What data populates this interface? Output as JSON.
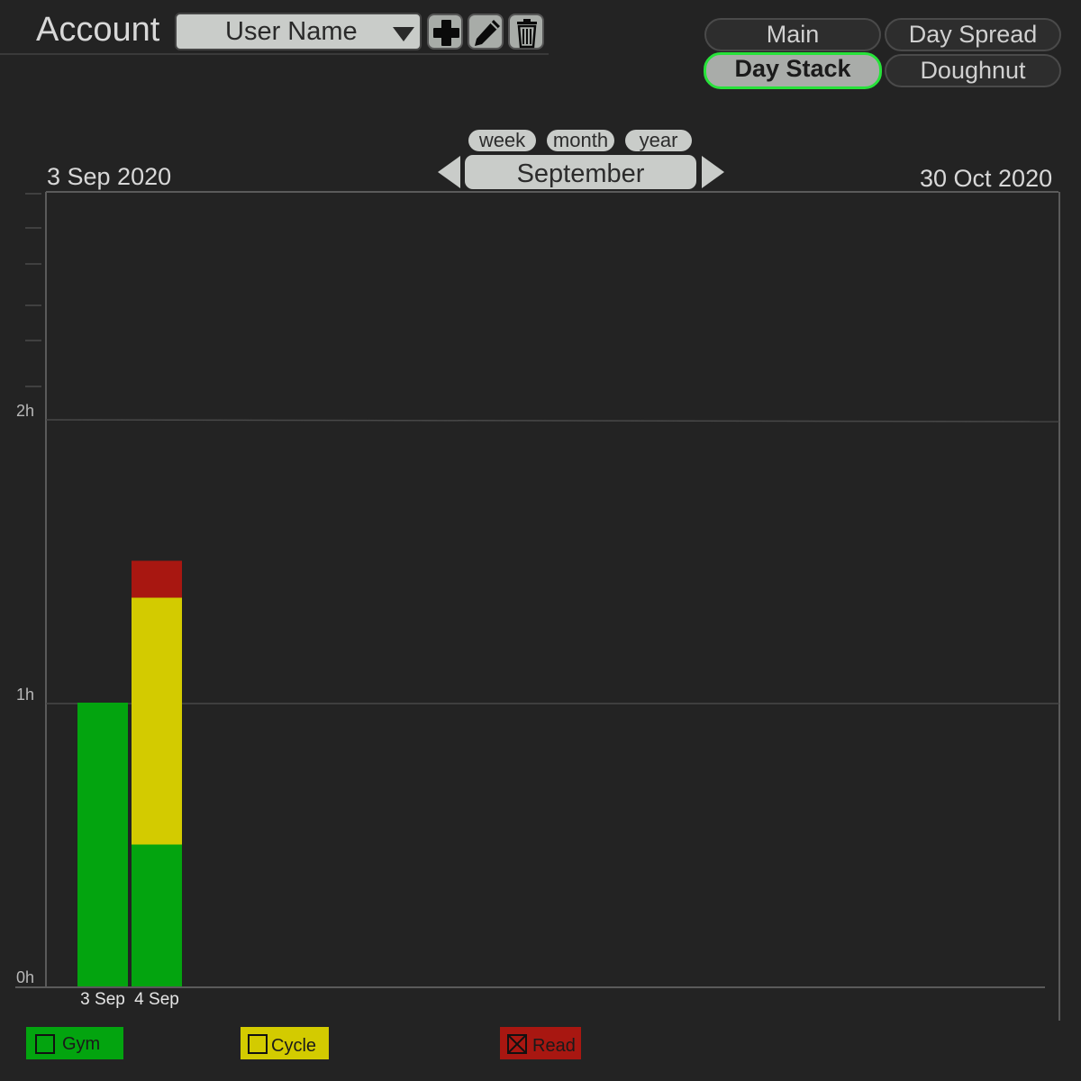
{
  "header": {
    "account_label": "Account",
    "user_select_value": "User Name"
  },
  "view_tabs": [
    {
      "label": "Main",
      "active": false
    },
    {
      "label": "Day Spread",
      "active": false
    },
    {
      "label": "Day Stack",
      "active": true
    },
    {
      "label": "Doughnut",
      "active": false
    }
  ],
  "period": {
    "options": [
      "week",
      "month",
      "year"
    ],
    "current": "September",
    "range_start": "3 Sep 2020",
    "range_end": "30 Oct 2020"
  },
  "colors": {
    "gym": "#03a40f",
    "cycle": "#d3cb00",
    "read": "#a81711",
    "active_tab_border": "#27e23a"
  },
  "chart_data": {
    "type": "bar",
    "stacked": true,
    "categories": [
      "3 Sep",
      "4 Sep"
    ],
    "series": [
      {
        "name": "Gym",
        "values": [
          1.0,
          0.5
        ],
        "color": "#03a40f"
      },
      {
        "name": "Cycle",
        "values": [
          0,
          0.87
        ],
        "color": "#d3cb00"
      },
      {
        "name": "Read",
        "values": [
          0,
          0.13
        ],
        "color": "#a81711"
      }
    ],
    "ylabel": "",
    "xlabel": "",
    "y_ticks": [
      "0h",
      "1h",
      "2h"
    ],
    "ylim": [
      0,
      2.95
    ],
    "unit": "hours",
    "grid": true
  },
  "legend": [
    {
      "label": "Gym",
      "checked": false
    },
    {
      "label": "Cycle",
      "checked": false
    },
    {
      "label": "Read",
      "checked": true
    }
  ]
}
